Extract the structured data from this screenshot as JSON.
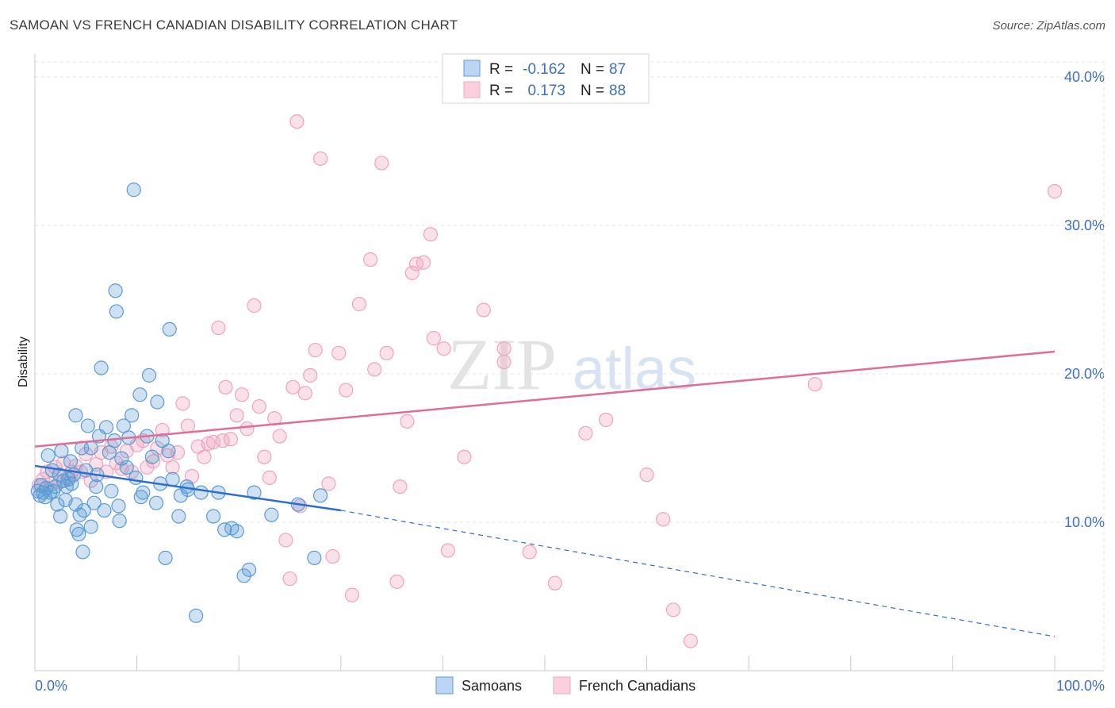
{
  "title": "SAMOAN VS FRENCH CANADIAN DISABILITY CORRELATION CHART",
  "source": "Source: ZipAtlas.com",
  "watermark": {
    "zip": "ZIP",
    "atlas": "atlas"
  },
  "colors": {
    "blue": "#5b9bd5",
    "blue_line": "#2a6fd0",
    "pink": "#f2a7c0",
    "pink_line": "#e06c97",
    "tick": "#3d6fc4"
  },
  "chart_data": {
    "type": "scatter",
    "title": "SAMOAN VS FRENCH CANADIAN DISABILITY CORRELATION CHART",
    "xlabel": "",
    "ylabel": "Disability",
    "xlim": [
      0,
      100
    ],
    "ylim": [
      0,
      40
    ],
    "x_tick_labels": [
      "0.0%",
      "100.0%"
    ],
    "y_ticks": [
      10,
      20,
      30,
      40
    ],
    "y_tick_labels": [
      "10.0%",
      "20.0%",
      "30.0%",
      "40.0%"
    ],
    "grid": true,
    "legend": {
      "placement": "top-center",
      "rows": [
        {
          "r_label": "R = ",
          "r_value": "-0.162",
          "n_label": "N = ",
          "n_value": "87"
        },
        {
          "r_label": "R = ",
          "r_value": "0.173",
          "n_label": "N = ",
          "n_value": "88"
        }
      ]
    },
    "series": [
      {
        "name": "Samoans",
        "color": "#5b9bd5",
        "trend": {
          "x0": 0,
          "y0": 13.8,
          "x1": 30,
          "y1": 10.8,
          "dashed_to_x": 100,
          "dashed_to_y": 2.3
        },
        "points": [
          [
            0.3,
            12.1
          ],
          [
            0.5,
            11.8
          ],
          [
            0.6,
            12.5
          ],
          [
            0.8,
            12.0
          ],
          [
            1.0,
            11.7
          ],
          [
            1.1,
            12.3
          ],
          [
            1.3,
            14.5
          ],
          [
            1.5,
            12.0
          ],
          [
            1.7,
            13.5
          ],
          [
            1.8,
            12.1
          ],
          [
            2.0,
            12.4
          ],
          [
            2.2,
            11.2
          ],
          [
            2.4,
            13.2
          ],
          [
            2.5,
            10.4
          ],
          [
            2.6,
            14.8
          ],
          [
            2.8,
            12.8
          ],
          [
            3.0,
            11.5
          ],
          [
            3.1,
            12.4
          ],
          [
            3.3,
            12.9
          ],
          [
            3.5,
            14.1
          ],
          [
            3.6,
            12.6
          ],
          [
            3.8,
            13.2
          ],
          [
            4.0,
            11.2
          ],
          [
            4.0,
            17.2
          ],
          [
            4.1,
            9.5
          ],
          [
            4.3,
            9.2
          ],
          [
            4.4,
            10.5
          ],
          [
            4.6,
            15.0
          ],
          [
            4.7,
            8.0
          ],
          [
            4.8,
            10.8
          ],
          [
            5.0,
            13.5
          ],
          [
            5.2,
            16.5
          ],
          [
            5.5,
            15.0
          ],
          [
            5.5,
            9.7
          ],
          [
            5.8,
            11.3
          ],
          [
            6.0,
            12.4
          ],
          [
            6.1,
            13.2
          ],
          [
            6.3,
            15.8
          ],
          [
            6.5,
            20.4
          ],
          [
            6.8,
            10.8
          ],
          [
            7.0,
            16.4
          ],
          [
            7.3,
            14.7
          ],
          [
            7.5,
            12.1
          ],
          [
            7.8,
            15.5
          ],
          [
            7.9,
            25.6
          ],
          [
            8.0,
            24.2
          ],
          [
            8.2,
            11.1
          ],
          [
            8.3,
            10.1
          ],
          [
            8.5,
            14.3
          ],
          [
            8.7,
            16.5
          ],
          [
            9.0,
            13.7
          ],
          [
            9.2,
            15.7
          ],
          [
            9.5,
            17.2
          ],
          [
            9.7,
            32.4
          ],
          [
            9.9,
            13.0
          ],
          [
            10.3,
            18.6
          ],
          [
            10.4,
            11.7
          ],
          [
            10.6,
            12.0
          ],
          [
            11.0,
            15.8
          ],
          [
            11.2,
            19.9
          ],
          [
            11.5,
            14.4
          ],
          [
            11.9,
            11.3
          ],
          [
            12.0,
            18.1
          ],
          [
            12.3,
            12.6
          ],
          [
            12.5,
            15.5
          ],
          [
            12.8,
            7.6
          ],
          [
            13.1,
            14.8
          ],
          [
            13.2,
            23.0
          ],
          [
            13.5,
            12.9
          ],
          [
            14.1,
            10.4
          ],
          [
            14.3,
            11.8
          ],
          [
            14.9,
            12.4
          ],
          [
            15.0,
            12.2
          ],
          [
            15.8,
            3.7
          ],
          [
            16.3,
            12.0
          ],
          [
            17.5,
            10.4
          ],
          [
            18.0,
            12.0
          ],
          [
            18.6,
            9.5
          ],
          [
            19.3,
            9.6
          ],
          [
            19.8,
            9.4
          ],
          [
            20.5,
            6.4
          ],
          [
            21.0,
            6.8
          ],
          [
            21.5,
            12.0
          ],
          [
            27.4,
            7.6
          ],
          [
            28.0,
            11.8
          ],
          [
            25.8,
            11.2
          ],
          [
            23.2,
            10.5
          ]
        ]
      },
      {
        "name": "French Canadians",
        "color": "#f2a7c0",
        "trend": {
          "x0": 0,
          "y0": 15.1,
          "x1": 100,
          "y1": 21.5
        },
        "points": [
          [
            0.4,
            12.5
          ],
          [
            0.8,
            12.9
          ],
          [
            1.2,
            13.4
          ],
          [
            1.6,
            12.6
          ],
          [
            2.0,
            13.7
          ],
          [
            2.4,
            12.7
          ],
          [
            2.8,
            14.0
          ],
          [
            3.2,
            13.0
          ],
          [
            3.6,
            13.4
          ],
          [
            4.0,
            13.8
          ],
          [
            4.5,
            13.4
          ],
          [
            5.0,
            14.6
          ],
          [
            5.5,
            12.8
          ],
          [
            6.0,
            13.9
          ],
          [
            6.5,
            14.7
          ],
          [
            7.0,
            13.4
          ],
          [
            7.5,
            15.1
          ],
          [
            8.0,
            14.0
          ],
          [
            8.5,
            13.6
          ],
          [
            9.0,
            14.8
          ],
          [
            9.5,
            13.4
          ],
          [
            10.0,
            15.2
          ],
          [
            10.6,
            15.5
          ],
          [
            11.0,
            13.7
          ],
          [
            11.6,
            14.1
          ],
          [
            12.0,
            15.0
          ],
          [
            12.5,
            16.2
          ],
          [
            13.0,
            14.5
          ],
          [
            13.5,
            13.7
          ],
          [
            14.0,
            14.7
          ],
          [
            14.5,
            18.0
          ],
          [
            15.0,
            16.5
          ],
          [
            15.4,
            13.1
          ],
          [
            16.0,
            15.1
          ],
          [
            16.6,
            14.4
          ],
          [
            17.0,
            15.3
          ],
          [
            17.5,
            15.4
          ],
          [
            18.0,
            23.1
          ],
          [
            18.4,
            15.5
          ],
          [
            18.7,
            19.1
          ],
          [
            19.2,
            15.6
          ],
          [
            19.8,
            17.2
          ],
          [
            20.3,
            18.6
          ],
          [
            20.8,
            16.3
          ],
          [
            21.5,
            24.6
          ],
          [
            22.0,
            17.8
          ],
          [
            22.5,
            14.4
          ],
          [
            23.0,
            13.0
          ],
          [
            23.5,
            17.0
          ],
          [
            24.0,
            15.8
          ],
          [
            24.6,
            8.8
          ],
          [
            25.0,
            6.2
          ],
          [
            25.3,
            19.1
          ],
          [
            25.7,
            37.0
          ],
          [
            26.0,
            11.1
          ],
          [
            26.5,
            18.7
          ],
          [
            27.0,
            19.9
          ],
          [
            27.5,
            21.6
          ],
          [
            28.0,
            34.5
          ],
          [
            28.8,
            12.6
          ],
          [
            29.2,
            7.7
          ],
          [
            29.8,
            21.4
          ],
          [
            30.5,
            18.9
          ],
          [
            31.1,
            5.1
          ],
          [
            31.8,
            24.7
          ],
          [
            32.9,
            27.7
          ],
          [
            33.3,
            20.3
          ],
          [
            34.0,
            34.2
          ],
          [
            34.5,
            21.4
          ],
          [
            35.5,
            6.0
          ],
          [
            35.8,
            12.4
          ],
          [
            36.5,
            16.8
          ],
          [
            37.0,
            26.8
          ],
          [
            37.4,
            27.4
          ],
          [
            38.1,
            27.5
          ],
          [
            38.8,
            29.4
          ],
          [
            39.1,
            22.4
          ],
          [
            40.1,
            21.7
          ],
          [
            40.5,
            8.1
          ],
          [
            42.1,
            14.4
          ],
          [
            44.0,
            24.3
          ],
          [
            46.0,
            21.7
          ],
          [
            46.0,
            20.8
          ],
          [
            48.5,
            8.0
          ],
          [
            51.0,
            5.9
          ],
          [
            54.0,
            16.0
          ],
          [
            56.0,
            16.9
          ],
          [
            60.0,
            13.2
          ]
        ],
        "extra_points": [
          [
            61.6,
            10.2
          ],
          [
            62.6,
            4.1
          ],
          [
            64.3,
            2.0
          ],
          [
            76.5,
            19.3
          ],
          [
            100,
            32.3
          ]
        ]
      }
    ]
  },
  "bottom_legend": [
    {
      "label": "Samoans"
    },
    {
      "label": "French Canadians"
    }
  ]
}
